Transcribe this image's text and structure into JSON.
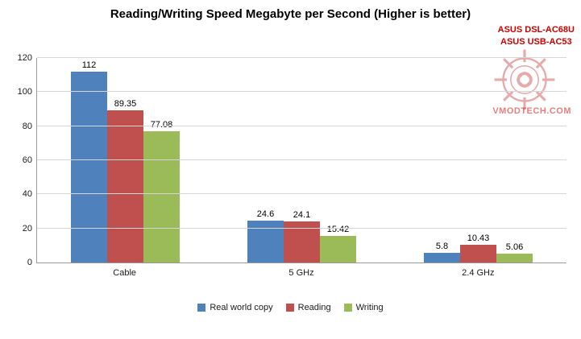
{
  "chart_data": {
    "type": "bar",
    "title": "Reading/Writing Speed Megabyte per Second (Higher is better)",
    "categories": [
      "Cable",
      "5 GHz",
      "2.4 GHz"
    ],
    "series": [
      {
        "name": "Real world copy",
        "color": "#4f81bd",
        "values": [
          112,
          24.6,
          5.8
        ]
      },
      {
        "name": "Reading",
        "color": "#c0504d",
        "values": [
          89.35,
          24.1,
          10.43
        ]
      },
      {
        "name": "Writing",
        "color": "#9bbb59",
        "values": [
          77.08,
          15.42,
          5.06
        ]
      }
    ],
    "ylim": [
      0,
      120
    ],
    "ytick_step": 20,
    "grid": true,
    "legend_position": "bottom",
    "xlabel": "",
    "ylabel": ""
  },
  "watermark": {
    "line1": "ASUS DSL-AC68U",
    "line2": "ASUS USB-AC53",
    "logo_text": "VMODTECH.COM",
    "color": "#cc0000"
  }
}
